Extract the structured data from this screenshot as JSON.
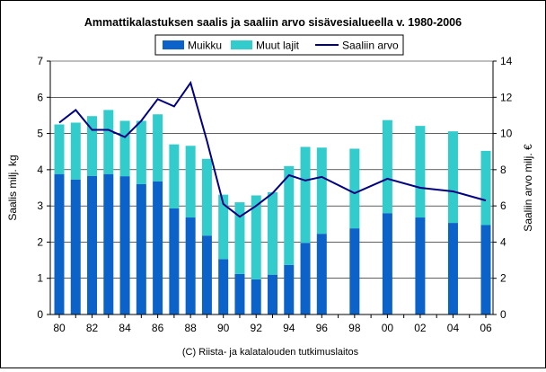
{
  "chart_data": {
    "type": "bar",
    "title": "Ammattikalastuksen saalis ja saaliin arvo sisävesialueella v. 1980-2006",
    "ylabel": "Saalis milj. kg",
    "y2label": "Saaliin arvo milj. €",
    "footer": "(C) Riista- ja kalatalouden tutkimuslaitos",
    "ylim": [
      0,
      7
    ],
    "y2lim": [
      0,
      14
    ],
    "yticks": [
      "0",
      "1",
      "2",
      "3",
      "4",
      "5",
      "6",
      "7"
    ],
    "y2ticks": [
      "0",
      "2",
      "4",
      "6",
      "8",
      "10",
      "12",
      "14"
    ],
    "x": [
      1980,
      1981,
      1982,
      1983,
      1984,
      1985,
      1986,
      1987,
      1988,
      1989,
      1990,
      1991,
      1992,
      1993,
      1994,
      1995,
      1996,
      1998,
      2000,
      2002,
      2004,
      2006
    ],
    "xlim": [
      1980,
      2006
    ],
    "xticks": [
      "80",
      "82",
      "84",
      "86",
      "88",
      "90",
      "92",
      "94",
      "96",
      "98",
      "00",
      "02",
      "04",
      "06"
    ],
    "stacked": true,
    "series": [
      {
        "name": "Muikku",
        "kind": "bar",
        "axis": "left",
        "color": "#0b63c9",
        "values": [
          3.88,
          3.73,
          3.83,
          3.88,
          3.82,
          3.6,
          3.68,
          2.93,
          2.68,
          2.18,
          1.53,
          1.12,
          0.97,
          1.1,
          1.37,
          1.98,
          2.23,
          2.38,
          2.8,
          2.68,
          2.53,
          2.47
        ]
      },
      {
        "name": "Muut lajit",
        "kind": "bar",
        "axis": "left",
        "color": "#33cccc",
        "values": [
          1.37,
          1.57,
          1.65,
          1.77,
          1.53,
          1.75,
          1.85,
          1.77,
          1.98,
          2.12,
          1.78,
          1.98,
          2.32,
          2.28,
          2.73,
          2.65,
          2.38,
          2.2,
          2.57,
          2.53,
          2.53,
          2.05
        ]
      },
      {
        "name": "Saaliin arvo",
        "kind": "line",
        "axis": "right",
        "color": "#000080",
        "values": [
          10.6,
          11.3,
          10.2,
          10.2,
          9.8,
          10.7,
          11.9,
          11.5,
          12.8,
          9.6,
          6.1,
          5.4,
          6.0,
          6.7,
          7.7,
          7.4,
          7.6,
          6.7,
          7.5,
          7.0,
          6.8,
          6.3
        ]
      }
    ],
    "legend": "top",
    "grid": true
  }
}
